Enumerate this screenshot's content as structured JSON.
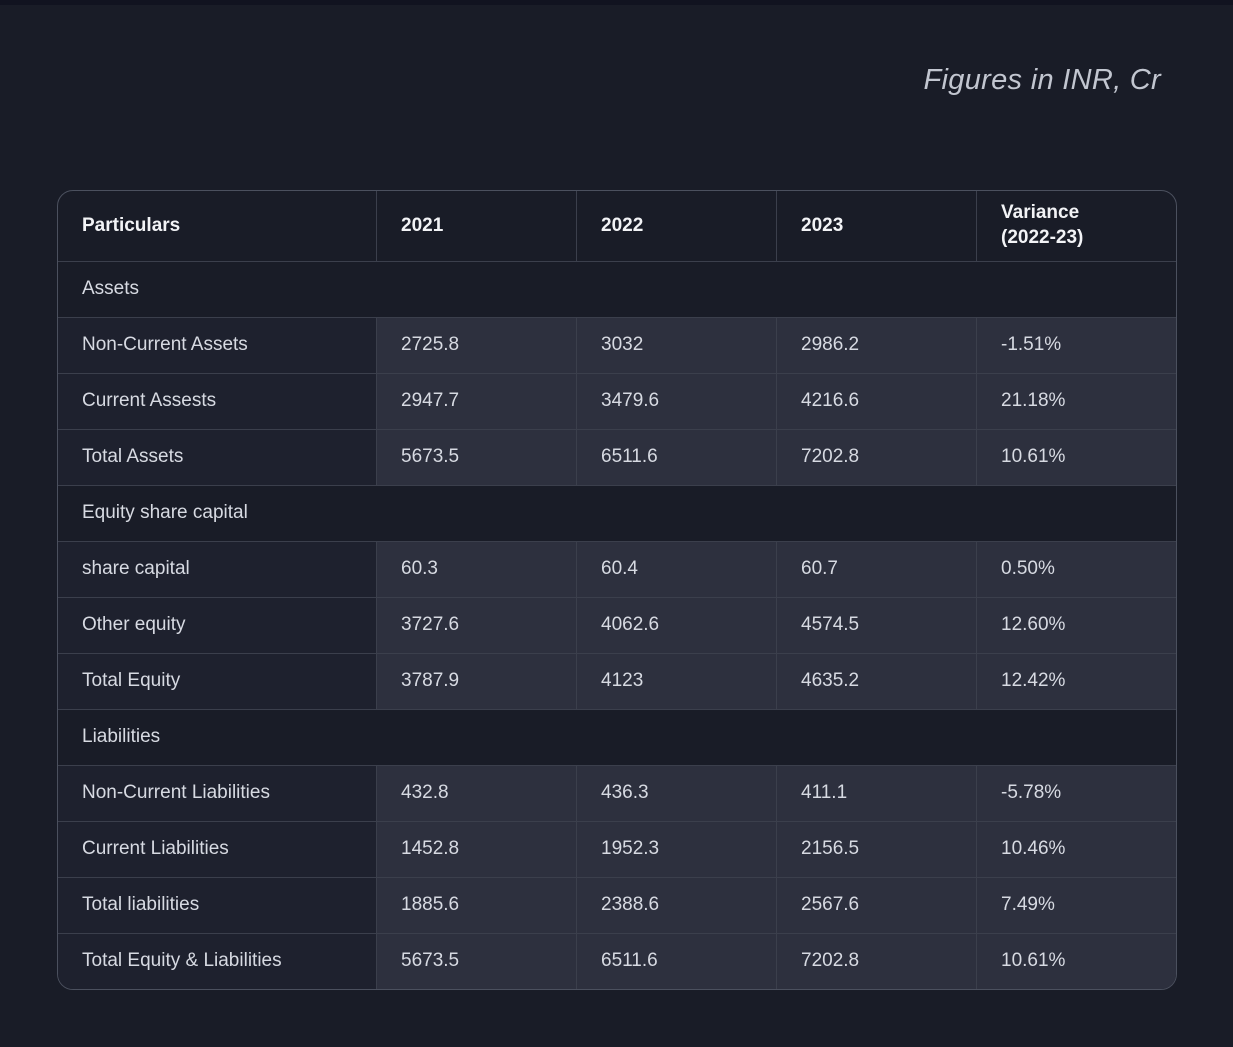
{
  "page": {
    "caption": "Figures in INR, Cr"
  },
  "table": {
    "columns": [
      "Particulars",
      "2021",
      "2022",
      "2023",
      "Variance\n(2022-23)"
    ],
    "rows": [
      {
        "type": "section",
        "label": "Assets"
      },
      {
        "type": "data",
        "label": "Non-Current Assets",
        "values": [
          "2725.8",
          "3032",
          "2986.2",
          "-1.51%"
        ]
      },
      {
        "type": "data",
        "label": "Current Assests",
        "values": [
          "2947.7",
          "3479.6",
          "4216.6",
          "21.18%"
        ]
      },
      {
        "type": "data",
        "label": "Total Assets",
        "values": [
          "5673.5",
          "6511.6",
          "7202.8",
          "10.61%"
        ]
      },
      {
        "type": "section",
        "label": "Equity share capital"
      },
      {
        "type": "data",
        "label": "share capital",
        "values": [
          "60.3",
          "60.4",
          "60.7",
          "0.50%"
        ]
      },
      {
        "type": "data",
        "label": "Other equity",
        "values": [
          "3727.6",
          "4062.6",
          "4574.5",
          "12.60%"
        ]
      },
      {
        "type": "data",
        "label": "Total Equity",
        "values": [
          "3787.9",
          "4123",
          "4635.2",
          "12.42%"
        ]
      },
      {
        "type": "section",
        "label": "Liabilities"
      },
      {
        "type": "data",
        "label": "Non-Current Liabilities",
        "values": [
          "432.8",
          "436.3",
          "411.1",
          "-5.78%"
        ]
      },
      {
        "type": "data",
        "label": "Current Liabilities",
        "values": [
          "1452.8",
          "1952.3",
          "2156.5",
          "10.46%"
        ]
      },
      {
        "type": "data",
        "label": "Total liabilities",
        "values": [
          "1885.6",
          "2388.6",
          "2567.6",
          "7.49%"
        ]
      },
      {
        "type": "data",
        "label": "Total Equity & Liabilities",
        "values": [
          "5673.5",
          "6511.6",
          "7202.8",
          "10.61%"
        ]
      }
    ]
  },
  "colors": {
    "page_background": "#191c27",
    "table_border": "#4b505e",
    "grid_line": "#3b3f4c",
    "label_cell_background": "#1e212e",
    "value_cell_background": "#2d303e",
    "header_text": "#f2f3f6",
    "body_text": "#d7dae2",
    "caption_text": "#c2c6d0"
  }
}
